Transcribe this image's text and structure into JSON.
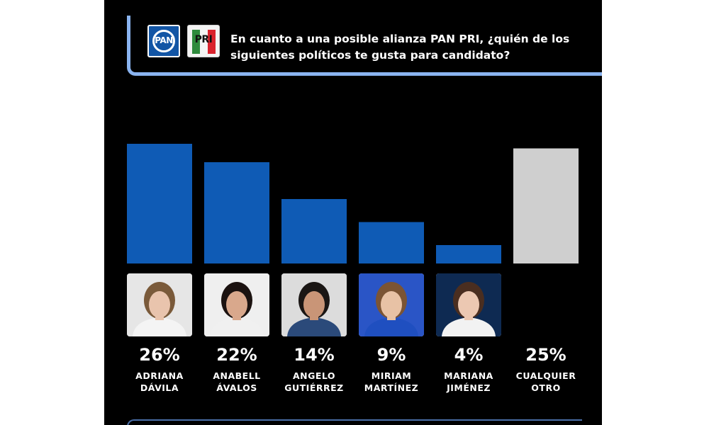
{
  "header": {
    "question": "En cuanto a una posible alianza PAN PRI, ¿quién de los siguientes políticos te gusta para candidato?",
    "logos": [
      {
        "name": "pan-logo",
        "text": "PAN"
      },
      {
        "name": "pri-logo",
        "text": "PRI"
      }
    ]
  },
  "colors": {
    "background": "#000000",
    "bar_candidate": "#0f5bb5",
    "bar_other": "#cfcfcf",
    "frame": "#8ab4f0"
  },
  "chart_data": {
    "type": "bar",
    "title": "En cuanto a una posible alianza PAN PRI, ¿quién de los siguientes políticos te gusta para candidato?",
    "categories": [
      "ADRIANA DÁVILA",
      "ANABELL ÁVALOS",
      "ANGELO GUTIÉRREZ",
      "MIRIAM MARTÍNEZ",
      "MARIANA JIMÉNEZ",
      "CUALQUIER OTRO"
    ],
    "values": [
      26,
      22,
      14,
      9,
      4,
      25
    ],
    "labels": [
      "26%",
      "22%",
      "14%",
      "9%",
      "4%",
      "25%"
    ],
    "name_lines": [
      [
        "ADRIANA",
        "DÁVILA"
      ],
      [
        "ANABELL",
        "ÁVALOS"
      ],
      [
        "ANGELO",
        "GUTIÉRREZ"
      ],
      [
        "MIRIAM",
        "MARTÍNEZ"
      ],
      [
        "MARIANA",
        "JIMÉNEZ"
      ],
      [
        "CUALQUIER",
        "OTRO"
      ]
    ],
    "bar_colors": [
      "#0f5bb5",
      "#0f5bb5",
      "#0f5bb5",
      "#0f5bb5",
      "#0f5bb5",
      "#cfcfcf"
    ],
    "unit": "%",
    "xlabel": "",
    "ylabel": "",
    "grid": false,
    "legend": "none"
  }
}
